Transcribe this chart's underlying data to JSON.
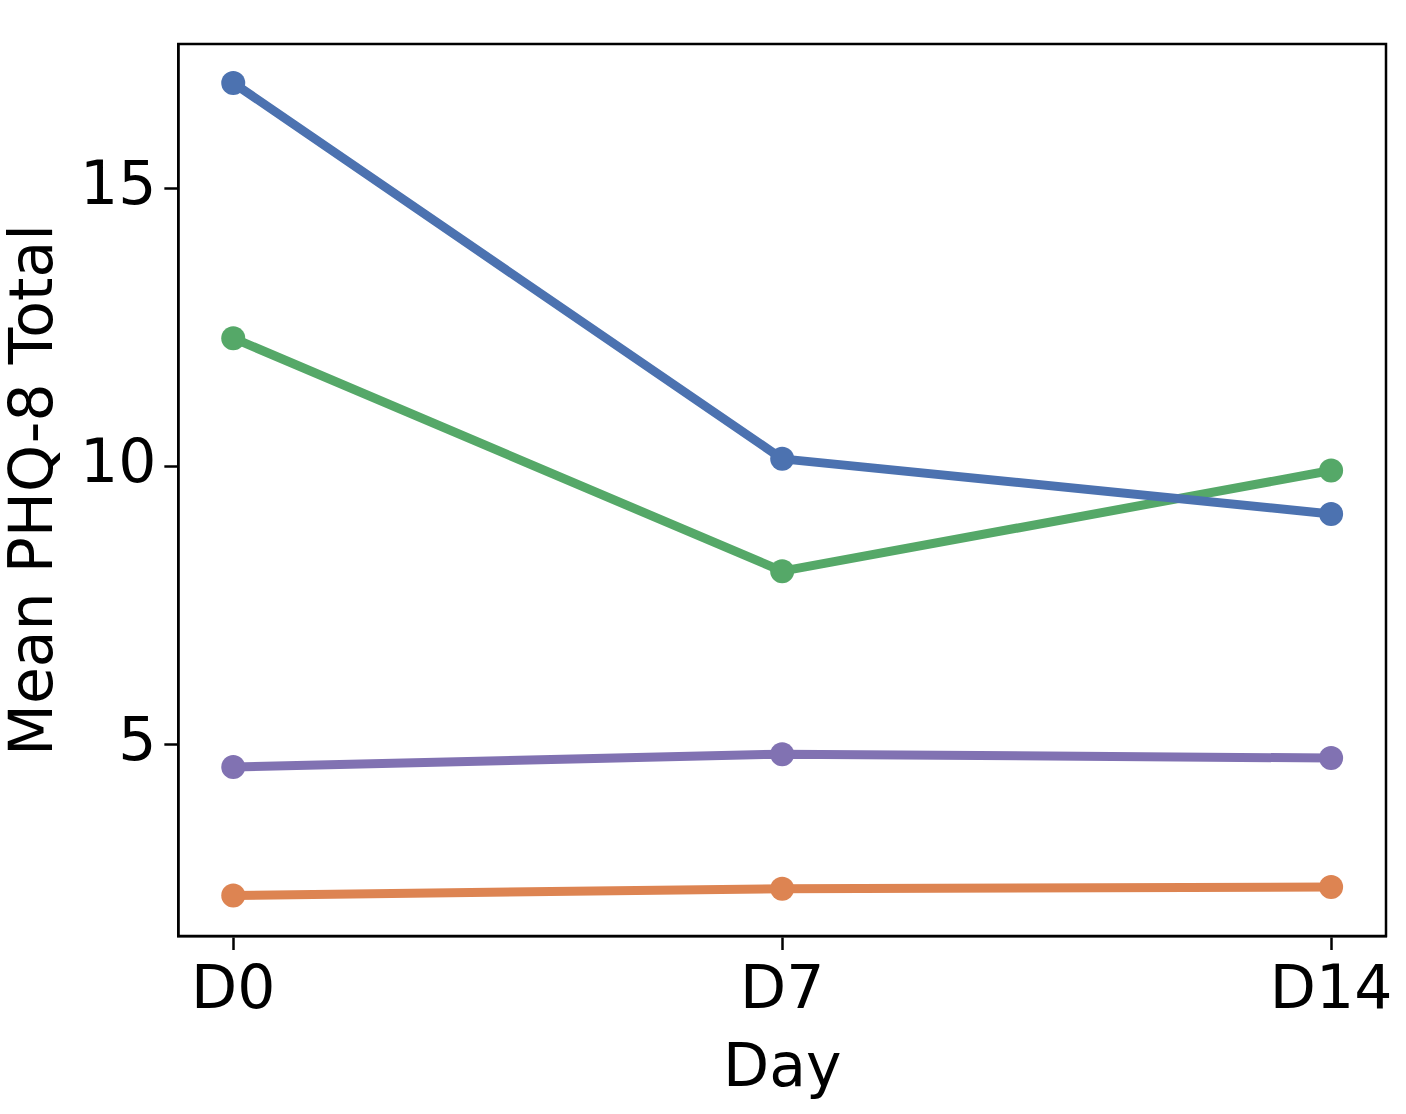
{
  "chart_data": {
    "type": "line",
    "xlabel": "Day",
    "ylabel": "Mean PHQ-8 Total",
    "categories": [
      "D0",
      "D7",
      "D14"
    ],
    "series": [
      {
        "color": "#4c72b0",
        "values": [
          16.9,
          10.14,
          9.15
        ]
      },
      {
        "color": "#55a868",
        "values": [
          12.31,
          8.12,
          9.93
        ]
      },
      {
        "color": "#8172b2",
        "values": [
          4.6,
          4.83,
          4.76
        ]
      },
      {
        "color": "#dd8452",
        "values": [
          2.29,
          2.41,
          2.44
        ]
      }
    ],
    "ylim": [
      1.56,
      17.6
    ],
    "yticks": [
      5,
      10,
      15
    ],
    "grid": false,
    "legend": false,
    "marker": "circle",
    "line_style": "solid"
  }
}
